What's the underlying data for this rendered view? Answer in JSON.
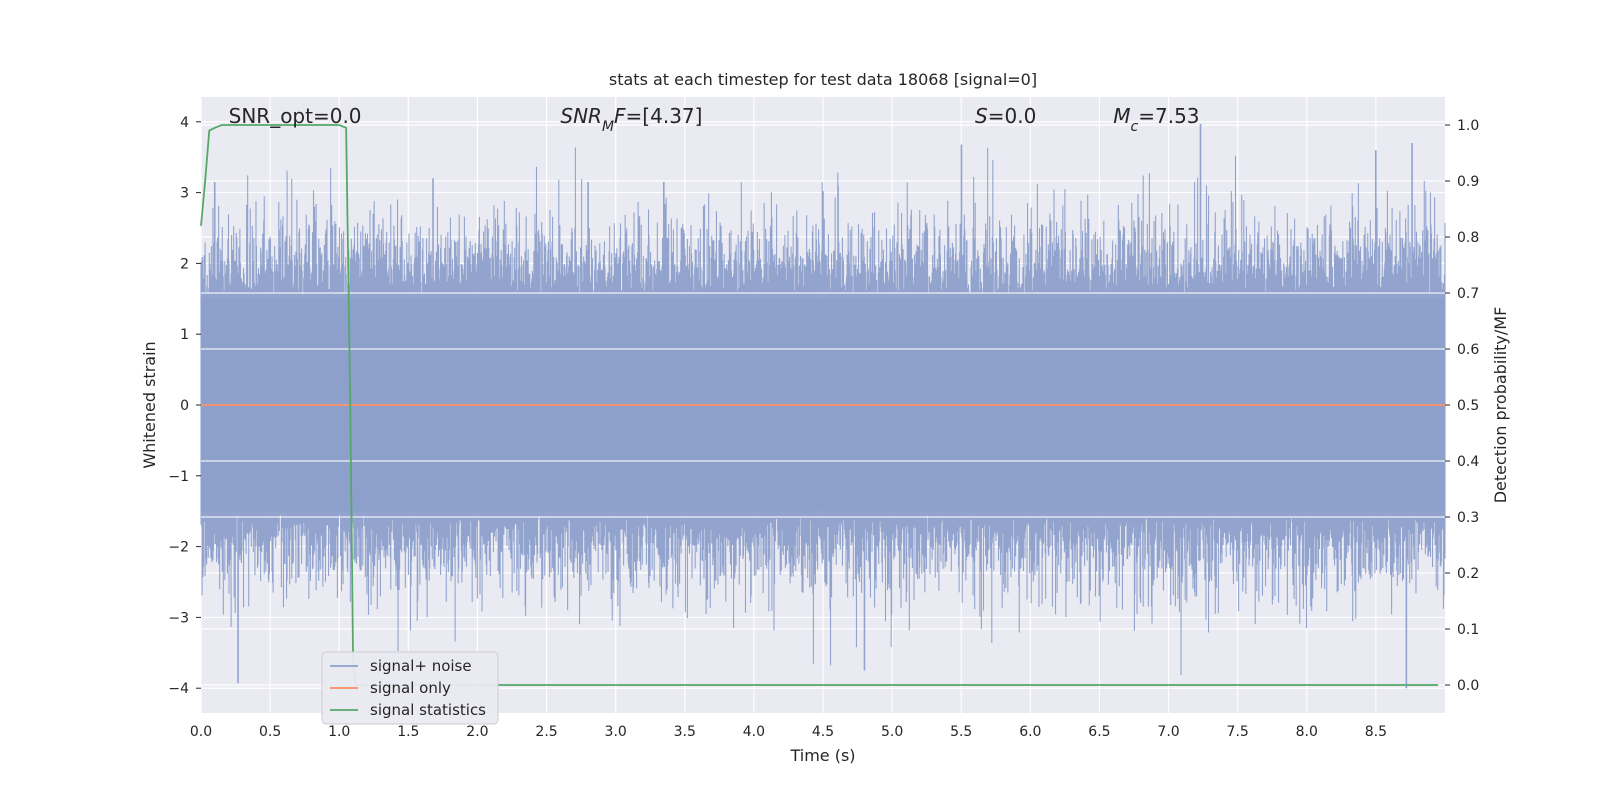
{
  "chart_data": {
    "type": "line",
    "title": "stats at each timestep for test data 18068 [signal=0]",
    "xlabel": "Time (s)",
    "ylabel_left": "Whitened strain",
    "ylabel_right": "Detection probability/MF",
    "xlim": [
      0.0,
      9.0
    ],
    "ylim_left": [
      -4.35,
      4.35
    ],
    "ylim_right": [
      -0.05,
      1.05
    ],
    "x_ticks": [
      "0.0",
      "0.5",
      "1.0",
      "1.5",
      "2.0",
      "2.5",
      "3.0",
      "3.5",
      "4.0",
      "4.5",
      "5.0",
      "5.5",
      "6.0",
      "6.5",
      "7.0",
      "7.5",
      "8.0",
      "8.5"
    ],
    "x_tick_values": [
      0.0,
      0.5,
      1.0,
      1.5,
      2.0,
      2.5,
      3.0,
      3.5,
      4.0,
      4.5,
      5.0,
      5.5,
      6.0,
      6.5,
      7.0,
      7.5,
      8.0,
      8.5
    ],
    "y_left_ticks": [
      "−4",
      "−3",
      "−2",
      "−1",
      "0",
      "1",
      "2",
      "3",
      "4"
    ],
    "y_left_tick_values": [
      -4,
      -3,
      -2,
      -1,
      0,
      1,
      2,
      3,
      4
    ],
    "y_right_ticks": [
      "0.0",
      "0.1",
      "0.2",
      "0.3",
      "0.4",
      "0.5",
      "0.6",
      "0.7",
      "0.8",
      "0.9",
      "1.0"
    ],
    "y_right_tick_values": [
      0.0,
      0.1,
      0.2,
      0.3,
      0.4,
      0.5,
      0.6,
      0.7,
      0.8,
      0.9,
      1.0
    ],
    "grid": true,
    "legend_placement": "lower-left",
    "annotations": [
      {
        "text_parts": [
          {
            "t": "SNR_opt=0.0",
            "italic": false
          }
        ],
        "x": 0.2
      },
      {
        "text_parts": [
          {
            "t": "SNR",
            "italic": true
          },
          {
            "t": "M",
            "italic": true,
            "sub": true
          },
          {
            "t": "F",
            "italic": true
          },
          {
            "t": "=[4.37]",
            "italic": false
          }
        ],
        "x": 2.6
      },
      {
        "text_parts": [
          {
            "t": "S",
            "italic": true
          },
          {
            "t": "=0.0",
            "italic": false
          }
        ],
        "x": 5.6
      },
      {
        "text_parts": [
          {
            "t": "M",
            "italic": true
          },
          {
            "t": "c",
            "italic": true,
            "sub": true
          },
          {
            "t": "=7.53",
            "italic": false
          }
        ],
        "x": 6.6
      }
    ],
    "series": [
      {
        "name": "signal+ noise",
        "axis": "left",
        "color": "#8da0cb",
        "kind": "noise",
        "x_range": [
          0.0,
          9.0
        ],
        "envelope_peaks": [
          {
            "x": 0.27,
            "y": -3.93
          },
          {
            "x": 0.1,
            "y": 3.15
          },
          {
            "x": 1.68,
            "y": 3.2
          },
          {
            "x": 2.8,
            "y": 3.15
          },
          {
            "x": 3.35,
            "y": 3.15
          },
          {
            "x": 4.8,
            "y": -3.75
          },
          {
            "x": 5.5,
            "y": 3.68
          },
          {
            "x": 7.23,
            "y": 3.97
          },
          {
            "x": 8.5,
            "y": 3.6
          },
          {
            "x": 8.72,
            "y": -4.0
          },
          {
            "x": 8.76,
            "y": 3.7
          }
        ]
      },
      {
        "name": "signal only",
        "axis": "left",
        "color": "#fc8d62",
        "x": [
          0.0,
          9.0
        ],
        "y": [
          0.0,
          0.0
        ]
      },
      {
        "name": "signal statistics",
        "axis": "right",
        "color": "#55a868",
        "x": [
          0.0,
          0.03,
          0.06,
          0.1,
          0.15,
          0.3,
          0.6,
          0.9,
          1.0,
          1.05,
          1.08,
          1.1,
          1.12,
          1.5,
          3.0,
          6.0,
          8.95
        ],
        "y": [
          0.82,
          0.9,
          0.99,
          0.995,
          1.0,
          1.0,
          1.0,
          1.0,
          1.0,
          0.995,
          0.5,
          0.05,
          0.0,
          0.0,
          0.0,
          0.0,
          0.0
        ]
      }
    ],
    "legend": [
      "signal+ noise",
      "signal only",
      "signal statistics"
    ]
  }
}
